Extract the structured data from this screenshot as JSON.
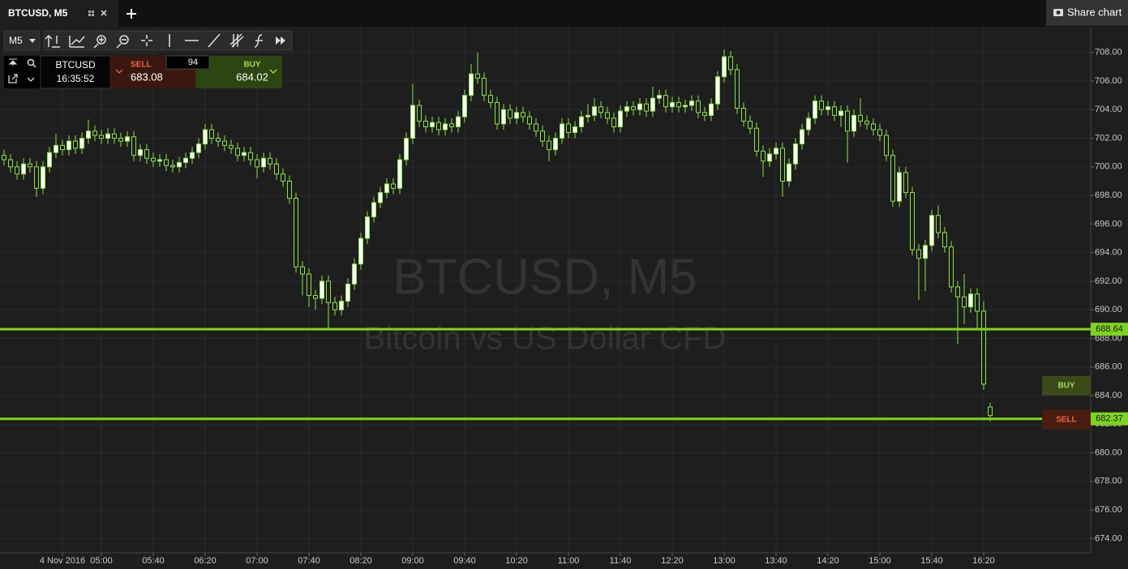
{
  "tab": {
    "title": "BTCUSD, M5",
    "share": "Share chart"
  },
  "toolbar": {
    "timeframe": "M5"
  },
  "ticker": {
    "symbol": "BTCUSD",
    "time": "16:35:52",
    "sell_label": "SELL",
    "sell": "683.08",
    "spread": "94",
    "buy_label": "BUY",
    "buy": "684.02"
  },
  "watermark": {
    "title": "BTCUSD, M5",
    "subtitle": "Bitcoin vs US Dollar CFD"
  },
  "chart_data": {
    "type": "candlestick",
    "up_color": "#ffffff",
    "down_color": "#1e1e1e",
    "outline_color": "#8ee04a",
    "grid": true,
    "ylim": [
      673.0,
      709.8
    ],
    "yticks": [
      {
        "value": 674,
        "label": "674.00"
      },
      {
        "value": 676,
        "label": "676.00"
      },
      {
        "value": 678,
        "label": "678.00"
      },
      {
        "value": 680,
        "label": "680.00"
      },
      {
        "value": 682,
        "label": "682.00"
      },
      {
        "value": 684,
        "label": "684.00"
      },
      {
        "value": 686,
        "label": "686.00"
      },
      {
        "value": 688,
        "label": "688.00"
      },
      {
        "value": 690,
        "label": "690.00"
      },
      {
        "value": 692,
        "label": "692.00"
      },
      {
        "value": 694,
        "label": "694.00"
      },
      {
        "value": 696,
        "label": "696.00"
      },
      {
        "value": 698,
        "label": "698.00"
      },
      {
        "value": 700,
        "label": "700.00"
      },
      {
        "value": 702,
        "label": "702.00"
      },
      {
        "value": 704,
        "label": "704.00"
      },
      {
        "value": 706,
        "label": "706.00"
      },
      {
        "value": 708,
        "label": "708.00"
      }
    ],
    "categories": [
      null,
      null,
      null,
      null,
      null,
      null,
      null,
      null,
      null,
      "4 Nov 2016",
      null,
      null,
      null,
      null,
      null,
      "05:00",
      null,
      null,
      null,
      null,
      null,
      null,
      null,
      "05:40",
      null,
      null,
      null,
      null,
      null,
      null,
      null,
      "06:20",
      null,
      null,
      null,
      null,
      null,
      null,
      null,
      "07:00",
      null,
      null,
      null,
      null,
      null,
      null,
      null,
      "07:40",
      null,
      null,
      null,
      null,
      null,
      null,
      null,
      "08:20",
      null,
      null,
      null,
      null,
      null,
      null,
      null,
      "09:00",
      null,
      null,
      null,
      null,
      null,
      null,
      null,
      "09:40",
      null,
      null,
      null,
      null,
      null,
      null,
      null,
      "10:20",
      null,
      null,
      null,
      null,
      null,
      null,
      null,
      "11:00",
      null,
      null,
      null,
      null,
      null,
      null,
      null,
      "11:40",
      null,
      null,
      null,
      null,
      null,
      null,
      null,
      "12:20",
      null,
      null,
      null,
      null,
      null,
      null,
      null,
      "13:00",
      null,
      null,
      null,
      null,
      null,
      null,
      null,
      "13:40",
      null,
      null,
      null,
      null,
      null,
      null,
      null,
      "14:20",
      null,
      null,
      null,
      null,
      null,
      null,
      null,
      "15:00",
      null,
      null,
      null,
      null,
      null,
      null,
      null,
      "15:40",
      null,
      null,
      null,
      null,
      null,
      null,
      null,
      "16:20",
      null
    ],
    "series": [
      {
        "name": "BTCUSD",
        "open": [
          700.8,
          700.5,
          700.0,
          699.5,
          700.2,
          700.0,
          698.5,
          700.0,
          701.0,
          701.5,
          701.2,
          701.8,
          701.3,
          702.0,
          702.5,
          702.2,
          702.0,
          702.3,
          702.0,
          701.8,
          702.1,
          700.8,
          701.2,
          700.6,
          700.4,
          700.5,
          700.1,
          700.0,
          700.3,
          700.6,
          701.0,
          701.6,
          702.6,
          702.0,
          701.8,
          701.5,
          701.3,
          700.8,
          701.0,
          700.5,
          700.0,
          700.6,
          700.2,
          699.5,
          699.0,
          697.8,
          693.0,
          692.5,
          691.0,
          690.8,
          692.0,
          690.5,
          690.0,
          690.6,
          691.8,
          693.2,
          695.0,
          696.5,
          697.5,
          698.2,
          698.8,
          698.5,
          700.5,
          702.0,
          704.3,
          703.2,
          702.8,
          703.1,
          702.6,
          703.0,
          702.8,
          703.5,
          705.0,
          706.5,
          706.2,
          705.0,
          704.5,
          703.0,
          704.0,
          703.4,
          703.8,
          703.5,
          703.0,
          702.5,
          701.8,
          701.2,
          702.0,
          703.0,
          702.4,
          702.8,
          703.5,
          703.6,
          704.2,
          703.8,
          703.4,
          702.8,
          703.9,
          704.2,
          704.0,
          704.4,
          703.9,
          704.8,
          705.0,
          704.2,
          704.5,
          704.2,
          704.3,
          704.6,
          703.8,
          703.6,
          704.4,
          706.3,
          707.7,
          706.8,
          704.1,
          703.2,
          702.7,
          701.1,
          700.4,
          700.9,
          701.3,
          699.0,
          700.2,
          701.6,
          702.6,
          703.4,
          704.6,
          704.0,
          704.2,
          703.6,
          703.9,
          702.5,
          703.6,
          703.2,
          703.0,
          702.6,
          702.2,
          700.8,
          697.6,
          699.6,
          698.2,
          694.2,
          693.6,
          694.5,
          696.6,
          695.4,
          694.4,
          691.6,
          690.9,
          690.2,
          691.1,
          689.9,
          683.2
        ],
        "high": [
          701.2,
          700.9,
          700.4,
          700.6,
          700.6,
          700.4,
          700.4,
          701.4,
          702.3,
          701.9,
          702.2,
          702.2,
          702.4,
          703.3,
          702.9,
          702.6,
          702.7,
          702.7,
          702.4,
          702.5,
          702.5,
          701.6,
          701.6,
          701.0,
          700.9,
          700.9,
          700.5,
          700.7,
          701.0,
          701.4,
          702.0,
          703.0,
          703.0,
          702.4,
          702.2,
          701.9,
          701.7,
          701.4,
          701.4,
          700.9,
          701.0,
          701.0,
          700.6,
          699.9,
          699.4,
          698.2,
          693.4,
          692.9,
          691.4,
          692.4,
          692.4,
          690.9,
          691.0,
          692.2,
          693.6,
          695.4,
          696.9,
          697.9,
          698.6,
          699.2,
          699.2,
          700.9,
          702.4,
          705.8,
          704.7,
          703.6,
          703.5,
          703.5,
          703.4,
          703.4,
          703.9,
          705.4,
          707.2,
          708.0,
          706.6,
          705.4,
          704.9,
          704.4,
          704.4,
          704.2,
          704.2,
          703.9,
          703.4,
          702.9,
          702.2,
          702.4,
          703.4,
          703.4,
          703.2,
          703.9,
          704.4,
          704.8,
          704.6,
          704.2,
          703.8,
          704.3,
          704.6,
          704.6,
          704.8,
          704.8,
          705.6,
          705.4,
          705.4,
          704.9,
          704.9,
          704.7,
          705.0,
          705.0,
          704.2,
          704.8,
          706.7,
          708.2,
          708.1,
          707.2,
          704.5,
          703.6,
          703.1,
          701.5,
          701.3,
          701.7,
          701.7,
          700.6,
          702.0,
          703.0,
          703.8,
          705.0,
          705.0,
          704.6,
          704.6,
          704.3,
          704.3,
          704.0,
          704.8,
          703.6,
          703.4,
          703.0,
          702.6,
          701.2,
          700.0,
          700.0,
          698.6,
          694.6,
          694.9,
          697.0,
          697.3,
          695.8,
          694.8,
          692.0,
          692.5,
          691.5,
          691.5,
          690.6,
          683.5
        ],
        "low": [
          700.1,
          699.6,
          699.1,
          699.1,
          699.6,
          697.9,
          698.1,
          699.6,
          700.6,
          700.8,
          700.8,
          700.9,
          700.9,
          701.6,
          701.8,
          701.6,
          701.6,
          701.6,
          701.4,
          701.4,
          700.4,
          700.4,
          700.2,
          700.0,
          700.0,
          699.7,
          699.6,
          699.6,
          699.9,
          700.2,
          700.6,
          701.2,
          701.6,
          701.4,
          701.1,
          700.9,
          700.4,
          700.4,
          700.1,
          699.2,
          699.6,
          699.8,
          699.1,
          698.6,
          697.4,
          692.6,
          691.0,
          690.2,
          690.0,
          690.4,
          688.7,
          689.6,
          689.6,
          690.2,
          691.4,
          692.8,
          694.6,
          696.1,
          697.1,
          697.8,
          698.1,
          698.1,
          700.1,
          701.6,
          702.8,
          702.4,
          702.4,
          702.2,
          702.2,
          702.4,
          702.4,
          703.1,
          704.6,
          705.8,
          704.6,
          704.1,
          702.6,
          702.6,
          703.0,
          703.0,
          703.1,
          702.6,
          702.1,
          701.4,
          700.4,
          700.8,
          701.6,
          702.0,
          702.0,
          702.4,
          703.1,
          703.2,
          703.4,
          703.0,
          702.4,
          702.4,
          703.5,
          703.6,
          703.6,
          703.5,
          703.5,
          704.4,
          703.8,
          703.8,
          703.8,
          703.8,
          703.9,
          703.4,
          703.2,
          703.2,
          704.0,
          705.9,
          706.4,
          703.7,
          702.8,
          702.3,
          700.7,
          699.3,
          700.0,
          700.5,
          697.9,
          698.6,
          699.8,
          701.2,
          702.2,
          703.0,
          703.6,
          703.6,
          703.2,
          702.8,
          700.3,
          702.1,
          702.8,
          702.6,
          702.2,
          701.8,
          700.4,
          697.2,
          697.2,
          697.8,
          693.8,
          690.7,
          691.3,
          694.1,
          695.0,
          694.0,
          691.2,
          687.6,
          689.0,
          689.8,
          688.6,
          684.4,
          682.2
        ],
        "close": [
          700.5,
          700.0,
          699.5,
          700.2,
          700.0,
          698.5,
          700.0,
          701.0,
          701.5,
          701.2,
          701.8,
          701.3,
          702.0,
          702.5,
          702.2,
          702.0,
          702.3,
          702.0,
          701.8,
          702.1,
          700.8,
          701.2,
          700.6,
          700.4,
          700.5,
          700.1,
          700.0,
          700.3,
          700.6,
          701.0,
          701.6,
          702.6,
          702.0,
          701.8,
          701.5,
          701.3,
          700.8,
          701.0,
          700.5,
          700.0,
          700.6,
          700.2,
          699.5,
          699.0,
          697.8,
          693.0,
          692.5,
          691.0,
          690.8,
          692.0,
          690.5,
          690.0,
          690.6,
          691.8,
          693.2,
          695.0,
          696.5,
          697.5,
          698.2,
          698.8,
          698.5,
          700.5,
          702.0,
          704.3,
          703.2,
          702.8,
          703.1,
          702.6,
          703.0,
          702.8,
          703.5,
          705.0,
          706.5,
          706.2,
          705.0,
          704.5,
          703.0,
          704.0,
          703.4,
          703.8,
          703.5,
          703.0,
          702.5,
          701.8,
          701.2,
          702.0,
          703.0,
          702.4,
          702.8,
          703.5,
          703.6,
          704.2,
          703.8,
          703.4,
          702.8,
          703.9,
          704.2,
          704.0,
          704.4,
          703.9,
          704.8,
          705.0,
          704.2,
          704.5,
          704.2,
          704.3,
          704.6,
          703.8,
          703.6,
          704.4,
          706.3,
          707.7,
          706.8,
          704.1,
          703.2,
          702.7,
          701.1,
          700.4,
          700.9,
          701.3,
          699.0,
          700.2,
          701.6,
          702.6,
          703.4,
          704.6,
          704.0,
          704.2,
          703.6,
          703.9,
          702.5,
          703.6,
          703.2,
          703.0,
          702.6,
          702.2,
          700.8,
          697.6,
          699.6,
          698.2,
          694.2,
          693.6,
          694.5,
          696.6,
          695.4,
          694.4,
          691.6,
          690.9,
          690.2,
          691.1,
          689.9,
          684.8,
          682.6
        ]
      }
    ],
    "hlines": [
      {
        "value": 688.64,
        "label": "688.64",
        "color": "#7ed321"
      },
      {
        "value": 682.37,
        "label": "682.37",
        "color": "#7ed321"
      }
    ],
    "buy_tag": "BUY",
    "sell_tag": "SELL"
  }
}
